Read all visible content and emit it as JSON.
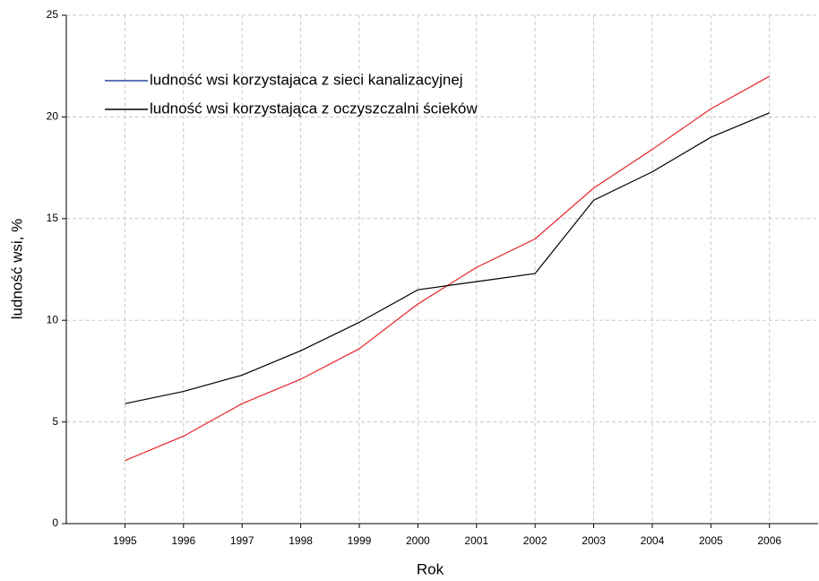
{
  "chart_data": {
    "type": "line",
    "categories": [
      "1995",
      "1996",
      "1997",
      "1998",
      "1999",
      "2000",
      "2001",
      "2002",
      "2003",
      "2004",
      "2005",
      "2006"
    ],
    "x_label": "Rok",
    "y_label": "ludność wsi, %",
    "ylim": [
      0,
      25
    ],
    "yticks": [
      0,
      5,
      10,
      15,
      20,
      25
    ],
    "grid": true,
    "legend": "upper left",
    "series": [
      {
        "name": "ludność wsi korzystajaca z sieci kanalizacyjnej",
        "color": "#e8232a",
        "legend_color": "#2c4aa0",
        "values": [
          3.1,
          4.3,
          5.9,
          7.1,
          8.6,
          10.8,
          12.6,
          14.0,
          16.5,
          18.4,
          20.4,
          22.0
        ]
      },
      {
        "name": "ludność wsi korzystająca z oczyszczalni ścieków",
        "color": "#000000",
        "values": [
          5.9,
          6.5,
          7.3,
          8.5,
          9.9,
          11.5,
          11.9,
          12.3,
          15.9,
          17.3,
          19.0,
          20.2
        ]
      }
    ]
  }
}
